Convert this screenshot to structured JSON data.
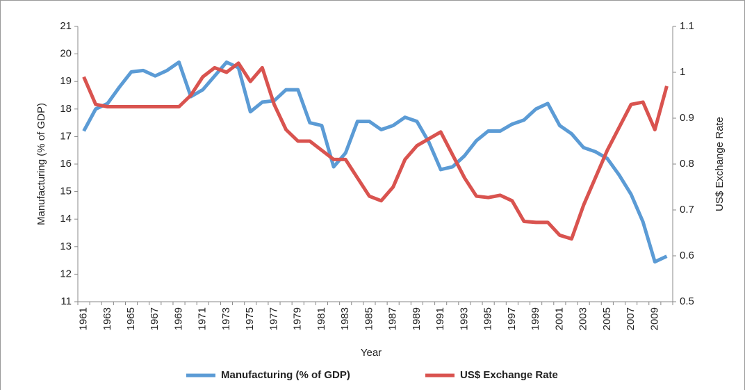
{
  "chart_data": {
    "type": "line",
    "xlabel": "Year",
    "ylabel": "Manufacturing (% of GDP)",
    "y2label": "US$ Exchange Rate",
    "categories": [
      "1961",
      null,
      "1963",
      null,
      "1965",
      null,
      "1967",
      null,
      "1969",
      null,
      "1971",
      null,
      "1973",
      null,
      "1975",
      null,
      "1977",
      null,
      "1979",
      null,
      "1981",
      null,
      "1983",
      null,
      "1985",
      null,
      "1987",
      null,
      "1989",
      null,
      "1991",
      null,
      "1993",
      null,
      "1995",
      null,
      "1997",
      null,
      "1999",
      null,
      "2001",
      null,
      "2003",
      null,
      "2005",
      null,
      "2007",
      null,
      "2009",
      null
    ],
    "series": [
      {
        "name": "Manufacturing (% of GDP)",
        "color": "#5b9bd5",
        "axis": "y",
        "values": [
          17.2,
          18.0,
          18.2,
          18.8,
          19.35,
          19.4,
          19.2,
          19.4,
          19.7,
          18.45,
          18.7,
          19.2,
          19.7,
          19.5,
          17.9,
          18.25,
          18.3,
          18.7,
          18.7,
          17.5,
          17.4,
          15.9,
          16.4,
          17.55,
          17.55,
          17.25,
          17.4,
          17.7,
          17.55,
          16.8,
          15.8,
          15.9,
          16.3,
          16.85,
          17.2,
          17.2,
          17.45,
          17.6,
          18.0,
          18.2,
          17.4,
          17.1,
          16.6,
          16.45,
          16.2,
          15.6,
          14.9,
          13.9,
          12.45,
          12.65
        ]
      },
      {
        "name": "US$ Exchange Rate",
        "color": "#d9534f",
        "axis": "y2",
        "values": [
          0.99,
          0.93,
          0.925,
          0.925,
          0.925,
          0.925,
          0.925,
          0.925,
          0.925,
          0.95,
          0.99,
          1.01,
          1.0,
          1.02,
          0.98,
          1.01,
          0.93,
          0.875,
          0.85,
          0.85,
          0.83,
          0.81,
          0.81,
          0.77,
          0.73,
          0.72,
          0.75,
          0.81,
          0.84,
          0.855,
          0.87,
          0.82,
          0.77,
          0.73,
          0.727,
          0.732,
          0.72,
          0.675,
          0.673,
          0.673,
          0.645,
          0.637,
          0.71,
          0.77,
          0.83,
          0.88,
          0.93,
          0.935,
          0.875,
          0.97
        ]
      }
    ],
    "ylim": [
      11,
      21
    ],
    "yticks": [
      11,
      12,
      13,
      14,
      15,
      16,
      17,
      18,
      19,
      20,
      21
    ],
    "y2lim": [
      0.5,
      1.1
    ],
    "y2ticks": [
      0.5,
      0.6,
      0.7,
      0.8,
      0.9,
      1,
      1.1
    ],
    "legend": "bottom"
  }
}
